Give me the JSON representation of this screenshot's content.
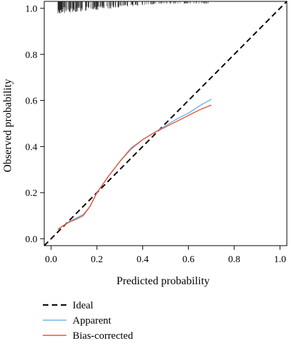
{
  "chart_data": {
    "type": "line",
    "xlabel": "Predicted probability",
    "ylabel": "Observed probability",
    "xlim": [
      -0.03,
      1.03
    ],
    "ylim": [
      -0.03,
      1.03
    ],
    "x_ticks": [
      "0.0",
      "0.2",
      "0.4",
      "0.6",
      "0.8",
      "1.0"
    ],
    "y_ticks": [
      "0.0",
      "0.2",
      "0.4",
      "0.6",
      "0.8",
      "1.0"
    ],
    "x_tick_values": [
      0,
      0.2,
      0.4,
      0.6,
      0.8,
      1.0
    ],
    "y_tick_values": [
      0,
      0.2,
      0.4,
      0.6,
      0.8,
      1.0
    ],
    "legend_position": "bottom-left",
    "series": [
      {
        "name": "Ideal",
        "style": "dashed",
        "color": "#000000",
        "points": [
          [
            -0.03,
            -0.03
          ],
          [
            1.03,
            1.03
          ]
        ]
      },
      {
        "name": "Apparent",
        "style": "solid",
        "color": "#6fb5df",
        "points": [
          [
            0.03,
            0.04
          ],
          [
            0.05,
            0.055
          ],
          [
            0.08,
            0.075
          ],
          [
            0.11,
            0.09
          ],
          [
            0.14,
            0.105
          ],
          [
            0.17,
            0.14
          ],
          [
            0.2,
            0.2
          ],
          [
            0.25,
            0.27
          ],
          [
            0.3,
            0.335
          ],
          [
            0.35,
            0.395
          ],
          [
            0.4,
            0.43
          ],
          [
            0.45,
            0.46
          ],
          [
            0.5,
            0.49
          ],
          [
            0.55,
            0.52
          ],
          [
            0.6,
            0.545
          ],
          [
            0.65,
            0.578
          ],
          [
            0.7,
            0.605
          ]
        ]
      },
      {
        "name": "Bias-corrected",
        "style": "solid",
        "color": "#e8523d",
        "points": [
          [
            0.03,
            0.04
          ],
          [
            0.05,
            0.055
          ],
          [
            0.08,
            0.072
          ],
          [
            0.11,
            0.085
          ],
          [
            0.14,
            0.1
          ],
          [
            0.17,
            0.14
          ],
          [
            0.2,
            0.2
          ],
          [
            0.25,
            0.27
          ],
          [
            0.3,
            0.335
          ],
          [
            0.35,
            0.39
          ],
          [
            0.4,
            0.43
          ],
          [
            0.45,
            0.46
          ],
          [
            0.5,
            0.485
          ],
          [
            0.55,
            0.51
          ],
          [
            0.6,
            0.535
          ],
          [
            0.65,
            0.56
          ],
          [
            0.7,
            0.58
          ]
        ]
      }
    ],
    "rug_top": {
      "description": "distribution of predicted probabilities",
      "density_peaks_at_x": [
        0.05,
        0.1,
        0.2
      ],
      "x_range": [
        0.03,
        0.72
      ]
    }
  }
}
